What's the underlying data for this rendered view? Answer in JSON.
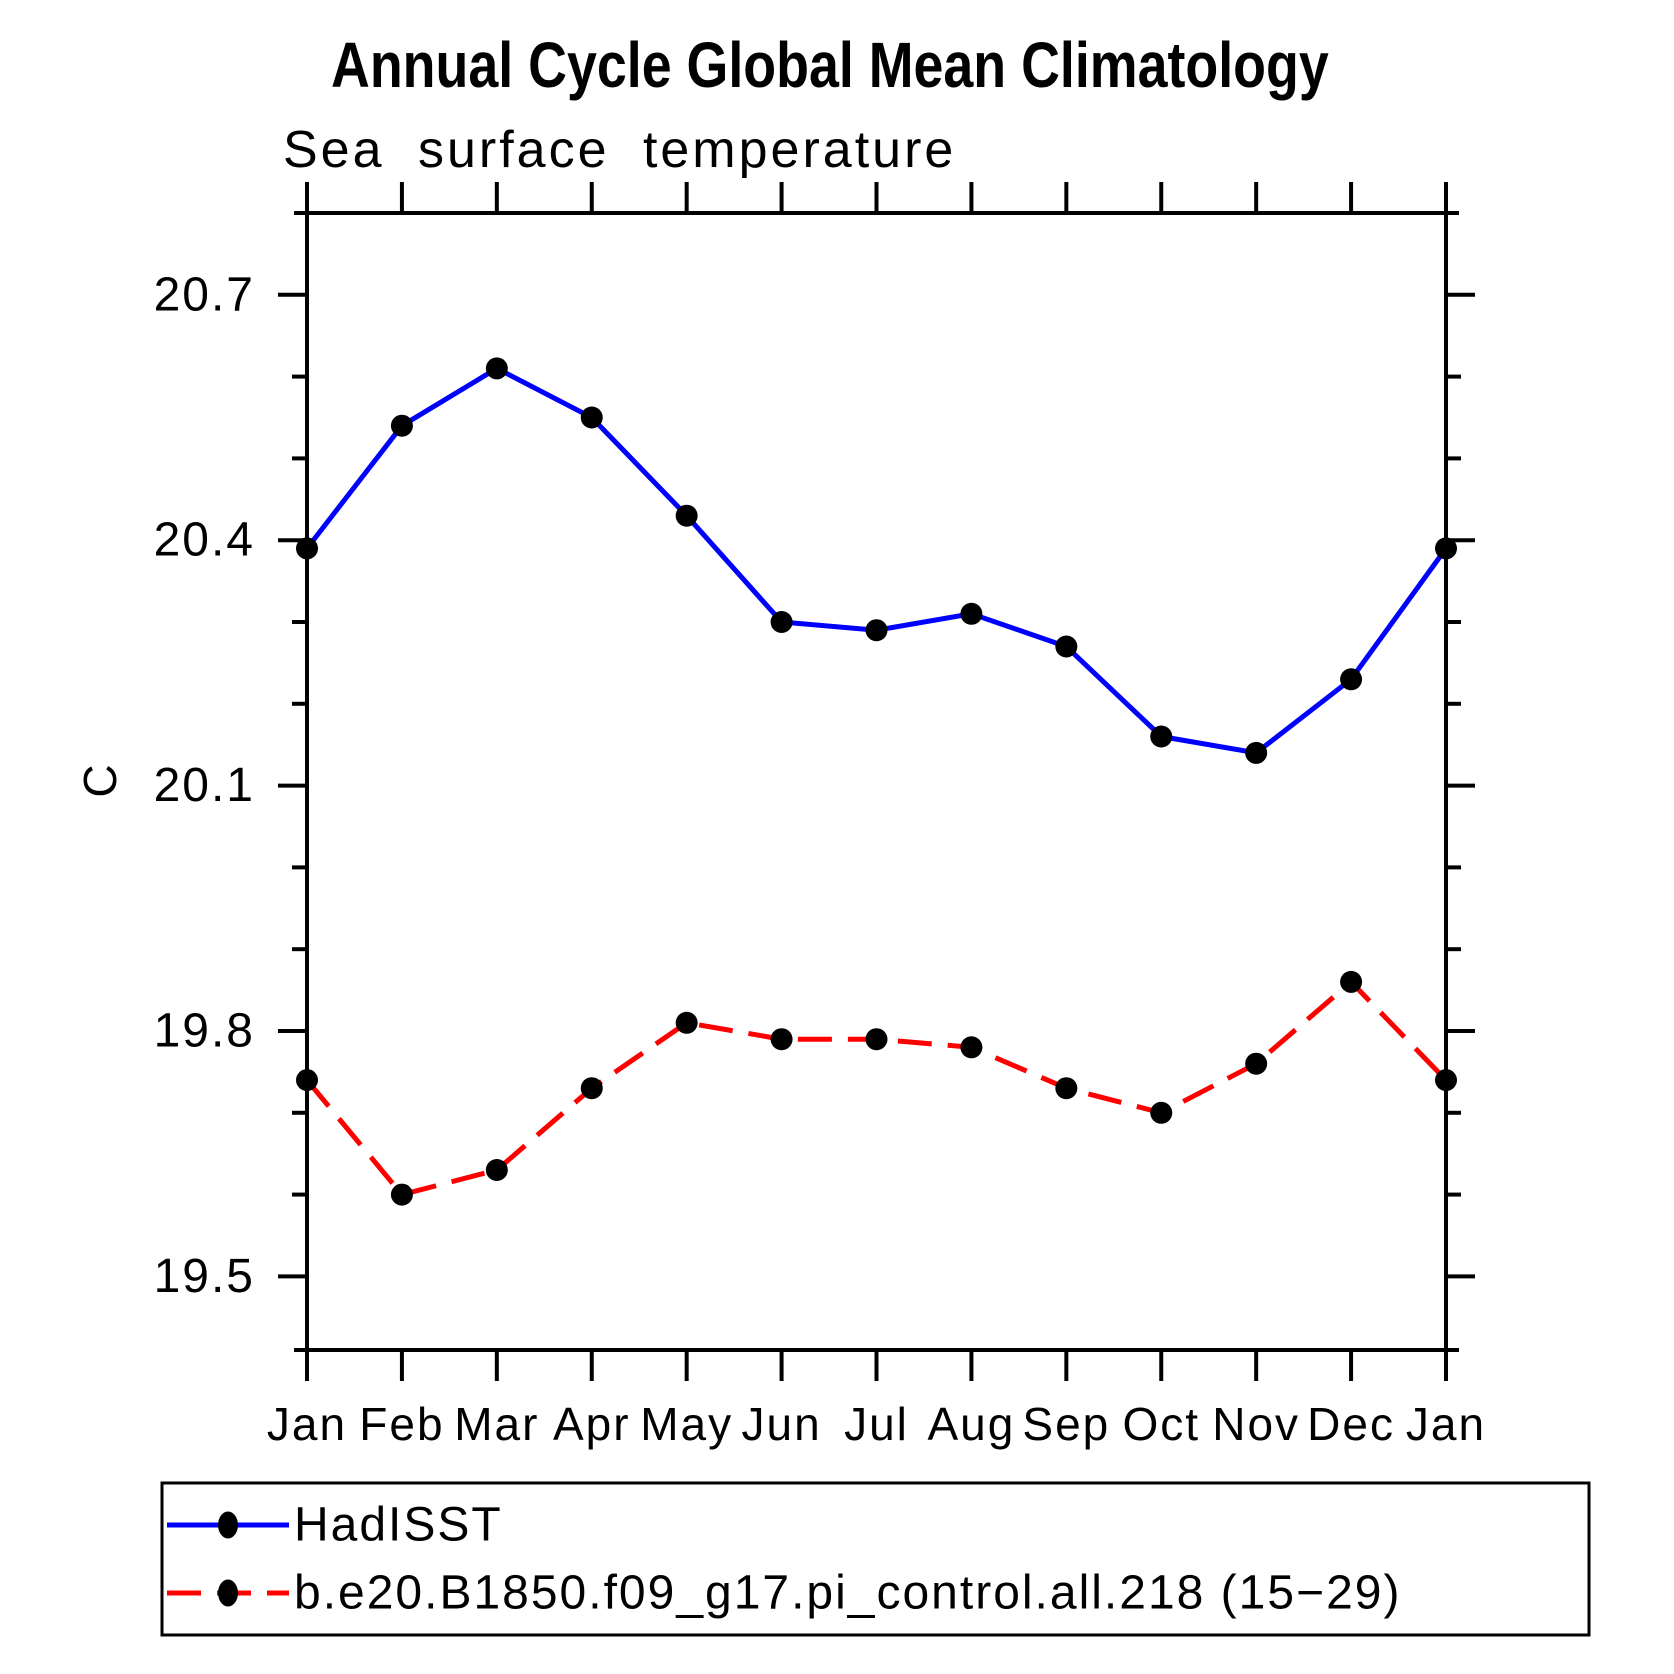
{
  "chart_data": {
    "type": "line",
    "title": "Annual Cycle Global Mean Climatology",
    "subtitle": "Sea surface temperature",
    "ylabel": "C",
    "xlabel": "",
    "categories": [
      "Jan",
      "Feb",
      "Mar",
      "Apr",
      "May",
      "Jun",
      "Jul",
      "Aug",
      "Sep",
      "Oct",
      "Nov",
      "Dec",
      "Jan"
    ],
    "ylim": [
      19.41,
      20.8
    ],
    "y_major_ticks": [
      20.7,
      20.4,
      20.1,
      19.8,
      19.5
    ],
    "y_major_tick_labels": [
      "20.7",
      "20.4",
      "20.1",
      "19.8",
      "19.5"
    ],
    "y_minor_tick_step": 0.1,
    "grid": false,
    "legend_position": "bottom-left",
    "axis_color": "#000000",
    "text_color": "#000000",
    "series": [
      {
        "name": "HadISST",
        "line_style": "solid",
        "line_color": "#0000ff",
        "marker": "filled-circle",
        "marker_color": "#000000",
        "values": [
          20.39,
          20.54,
          20.61,
          20.55,
          20.43,
          20.3,
          20.29,
          20.31,
          20.27,
          20.16,
          20.14,
          20.23,
          20.39
        ]
      },
      {
        "name": "b.e20.B1850.f09_g17.pi_control.all.218 (15−29)",
        "line_style": "dashed",
        "line_color": "#ff0000",
        "marker": "filled-circle",
        "marker_color": "#000000",
        "values": [
          19.74,
          19.6,
          19.63,
          19.73,
          19.81,
          19.79,
          19.79,
          19.78,
          19.73,
          19.7,
          19.76,
          19.86,
          19.74
        ]
      }
    ]
  }
}
